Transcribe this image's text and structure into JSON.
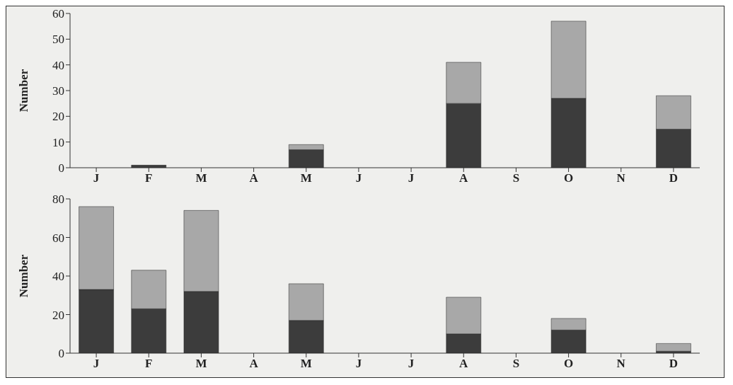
{
  "chart_data": [
    {
      "type": "bar",
      "stacked": true,
      "ylabel": "Number",
      "categories": [
        "J",
        "F",
        "M",
        "A",
        "M",
        "J",
        "J",
        "A",
        "S",
        "O",
        "N",
        "D"
      ],
      "ylim": [
        0,
        60
      ],
      "yticks": [
        0,
        10,
        20,
        30,
        40,
        50,
        60
      ],
      "series": [
        {
          "color": "#3c3c3c",
          "values": [
            0,
            1,
            0,
            0,
            7,
            0,
            0,
            25,
            0,
            27,
            0,
            15
          ]
        },
        {
          "color": "#a8a8a8",
          "values": [
            0,
            0,
            0,
            0,
            2,
            0,
            0,
            16,
            0,
            30,
            0,
            13
          ]
        }
      ]
    },
    {
      "type": "bar",
      "stacked": true,
      "ylabel": "Number",
      "categories": [
        "J",
        "F",
        "M",
        "A",
        "M",
        "J",
        "J",
        "A",
        "S",
        "O",
        "N",
        "D"
      ],
      "ylim": [
        0,
        80
      ],
      "yticks": [
        0,
        20,
        40,
        60,
        80
      ],
      "series": [
        {
          "color": "#3c3c3c",
          "values": [
            33,
            23,
            32,
            0,
            17,
            0,
            0,
            10,
            0,
            12,
            0,
            1
          ]
        },
        {
          "color": "#a8a8a8",
          "values": [
            43,
            20,
            42,
            0,
            19,
            0,
            0,
            19,
            0,
            6,
            0,
            4
          ]
        }
      ]
    }
  ]
}
